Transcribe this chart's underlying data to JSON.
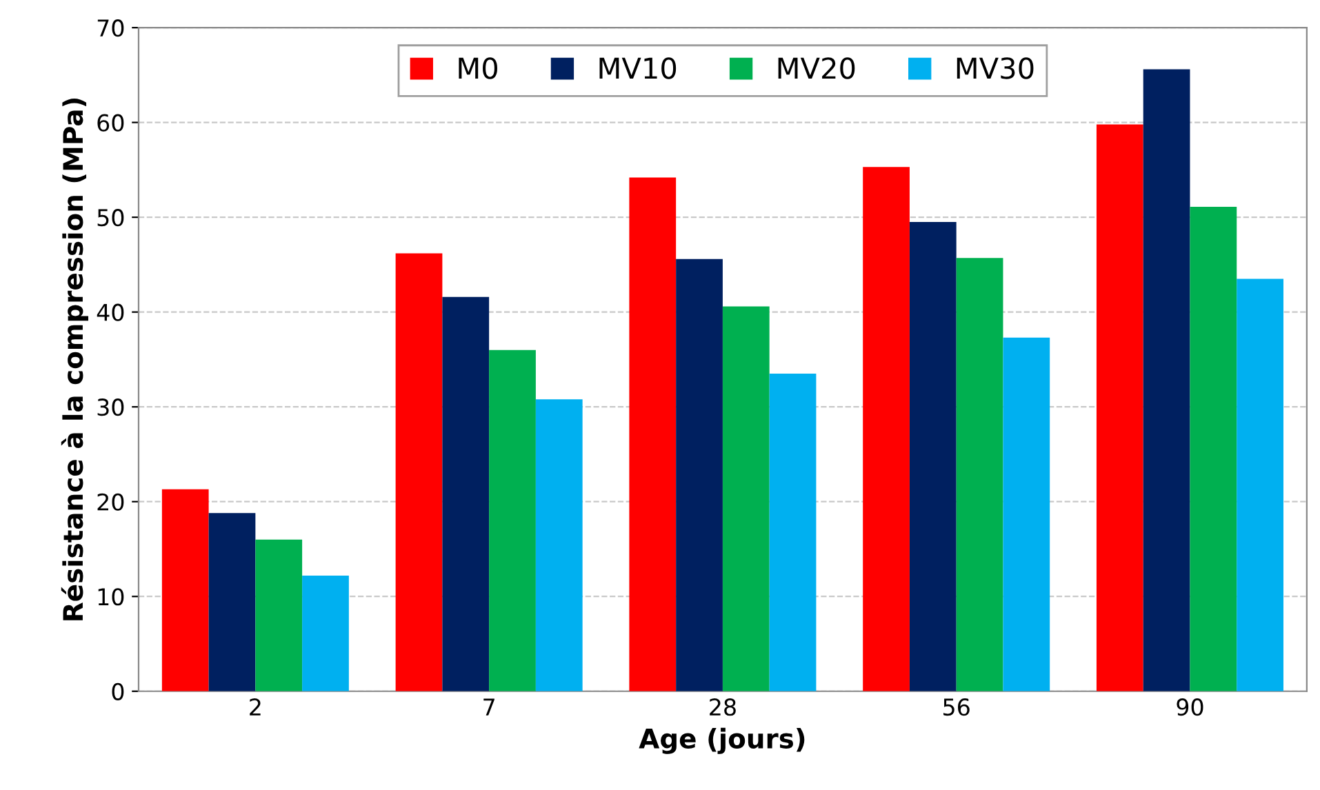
{
  "chart_data": {
    "type": "bar",
    "xlabel": "Age (jours)",
    "ylabel": "Résistance à la compression (MPa)",
    "categories": [
      "2",
      "7",
      "28",
      "56",
      "90"
    ],
    "series": [
      {
        "name": "M0",
        "color": "#ff0000",
        "values": [
          21.3,
          46.2,
          54.2,
          55.3,
          59.8
        ]
      },
      {
        "name": "MV10",
        "color": "#002060",
        "values": [
          18.8,
          41.6,
          45.6,
          49.5,
          65.6
        ]
      },
      {
        "name": "MV20",
        "color": "#00b050",
        "values": [
          16.0,
          36.0,
          40.6,
          45.7,
          51.1
        ]
      },
      {
        "name": "MV30",
        "color": "#00b0f0",
        "values": [
          12.2,
          30.8,
          33.5,
          37.3,
          43.5
        ]
      }
    ],
    "ylim": [
      0,
      70
    ],
    "yticks": [
      0,
      10,
      20,
      30,
      40,
      50,
      60,
      70
    ],
    "grid": "y",
    "legend": "top"
  }
}
